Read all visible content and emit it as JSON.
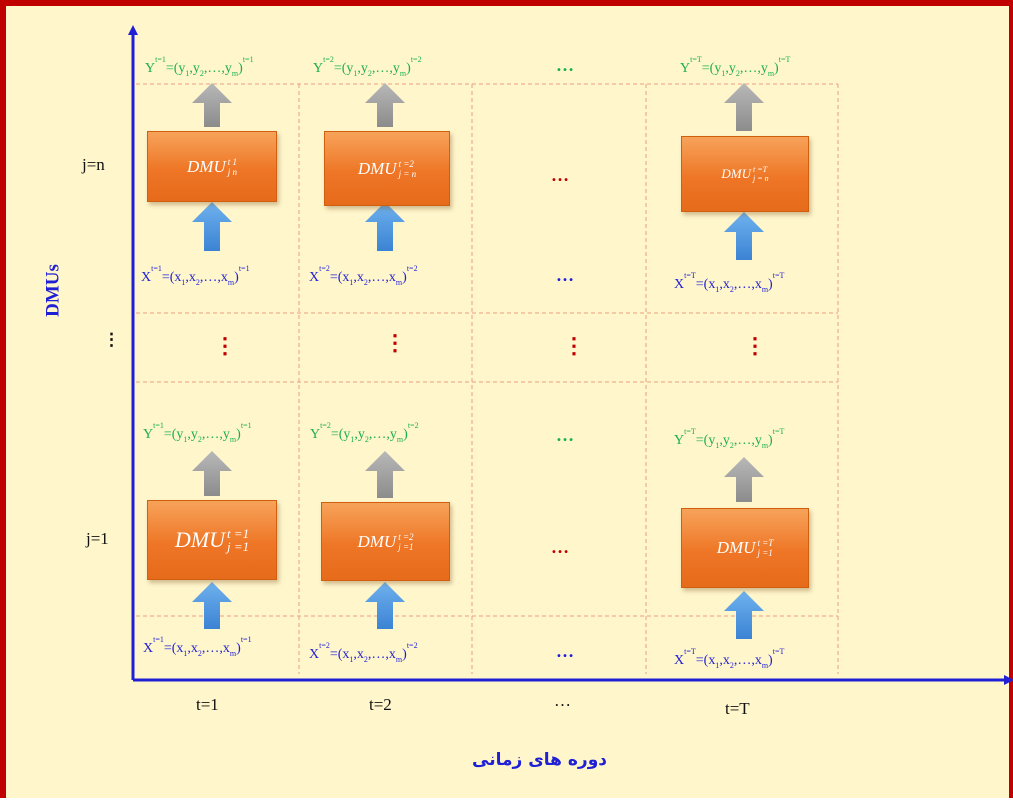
{
  "axes": {
    "y_title": "DMUs",
    "x_title": "دوره های زمانی",
    "y_ticks": [
      "j=n",
      "⋮",
      "j=1"
    ],
    "x_ticks": [
      "t=1",
      "t=2",
      "…",
      "t=T"
    ]
  },
  "colors": {
    "frame": "#c00000",
    "background": "#fff6cc",
    "axis": "#1f1fd6",
    "output_text": "#19b04a",
    "input_text": "#1f1fd6",
    "dmu_box": "#ee7626",
    "ellipsis": "#c00000",
    "grid_line": "#e8a080"
  },
  "symbols": {
    "h_ellipsis": "…",
    "v_ellipsis": "⋮"
  },
  "dmu": {
    "name": "DMU",
    "top_row": [
      {
        "sup": "t   1",
        "sub": "j   n"
      },
      {
        "sup": "t =2",
        "sub": "j = n"
      },
      {
        "sup": "t =T",
        "sub": "j = n"
      }
    ],
    "bottom_row": [
      {
        "sup": "t =1",
        "sub": "j =1"
      },
      {
        "sup": "t =2",
        "sub": "j =1"
      },
      {
        "sup": "t =T",
        "sub": "j =1"
      }
    ]
  },
  "equations": {
    "output": {
      "base": "Y",
      "sups": [
        "t=1",
        "t=2",
        "t=T"
      ],
      "open": "=(",
      "v1": "y",
      "s1": "1",
      "v2": "y",
      "s2": "2",
      "sep": ",",
      "dots": "…",
      "vm": "y",
      "sm": "m",
      "close": ")"
    },
    "input": {
      "base": "X",
      "sups": [
        "t=1",
        "t=2",
        "t=T"
      ],
      "open": "=(",
      "v1": "x",
      "s1": "1",
      "v2": "x",
      "s2": "2",
      "sep": ",",
      "dots": "…",
      "vm": "x",
      "sm": "m",
      "close": ")"
    }
  }
}
